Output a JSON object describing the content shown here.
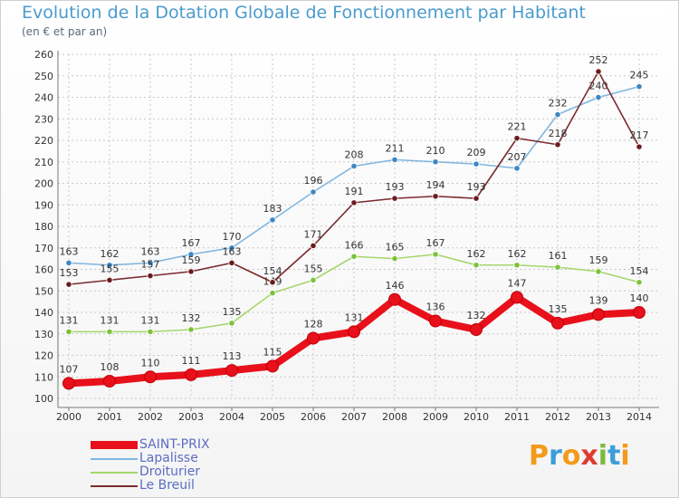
{
  "header": {
    "title": "Evolution de la Dotation Globale de Fonctionnement par Habitant",
    "subtitle": "(en € et par an)"
  },
  "colors": {
    "axis": "#777777",
    "grid": "#c8c8c8",
    "tick_text": "#333333",
    "title": "#4a9bcc"
  },
  "logo": "Proxiti",
  "chart_data": {
    "type": "line",
    "title": "Evolution de la Dotation Globale de Fonctionnement par Habitant",
    "subtitle": "(en € et par an)",
    "xlabel": "",
    "ylabel": "",
    "x": [
      "2000",
      "2001",
      "2002",
      "2003",
      "2004",
      "2005",
      "2006",
      "2007",
      "2008",
      "2009",
      "2010",
      "2011",
      "2012",
      "2013",
      "2014"
    ],
    "ylim": [
      100,
      260
    ],
    "yticks": [
      100,
      110,
      120,
      130,
      140,
      150,
      160,
      170,
      180,
      190,
      200,
      210,
      220,
      230,
      240,
      250,
      260
    ],
    "grid": true,
    "legend_position": "bottom-left",
    "series": [
      {
        "name": "SAINT-PRIX",
        "color": "#e8101a",
        "marker_color": "#e8101a",
        "values": [
          107,
          108,
          110,
          111,
          113,
          115,
          128,
          131,
          146,
          136,
          132,
          147,
          135,
          139,
          140
        ]
      },
      {
        "name": "Lapalisse",
        "color": "#7fb6e0",
        "marker_color": "#3d87c5",
        "values": [
          163,
          162,
          163,
          167,
          170,
          183,
          196,
          208,
          211,
          210,
          209,
          207,
          232,
          240,
          245
        ]
      },
      {
        "name": "Droiturier",
        "color": "#a6d66c",
        "marker_color": "#7cc23a",
        "values": [
          131,
          131,
          131,
          132,
          135,
          149,
          155,
          166,
          165,
          167,
          162,
          162,
          161,
          159,
          154
        ]
      },
      {
        "name": "Le Breuil",
        "color": "#7a2a2e",
        "marker_color": "#6a1b1f",
        "values": [
          153,
          155,
          157,
          159,
          163,
          154,
          171,
          191,
          193,
          194,
          193,
          221,
          218,
          252,
          217
        ]
      }
    ]
  }
}
